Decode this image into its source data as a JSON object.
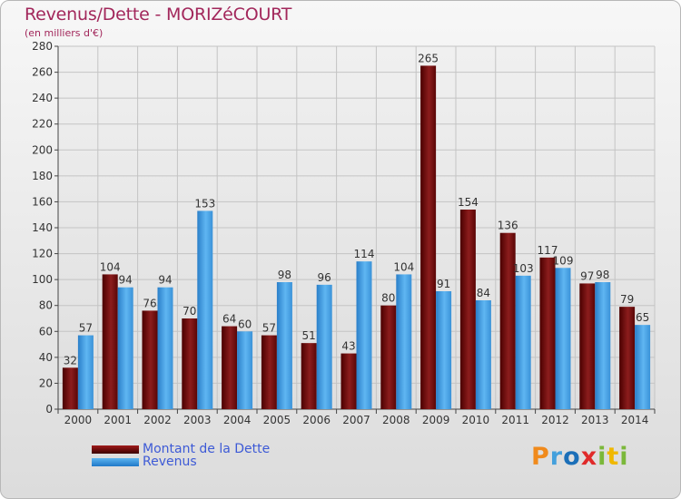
{
  "title": "Revenus/Dette - MORIZéCOURT",
  "subtitle": "(en milliers d'€)",
  "chart_data": {
    "type": "bar",
    "categories": [
      "2000",
      "2001",
      "2002",
      "2003",
      "2004",
      "2005",
      "2006",
      "2007",
      "2008",
      "2009",
      "2010",
      "2011",
      "2012",
      "2013",
      "2014"
    ],
    "series": [
      {
        "name": "Montant de la Dette",
        "color": "#7a1414",
        "values": [
          32,
          104,
          76,
          70,
          64,
          57,
          51,
          43,
          80,
          265,
          154,
          136,
          117,
          97,
          79
        ]
      },
      {
        "name": "Revenus",
        "color": "#3d9ae0",
        "values": [
          57,
          94,
          94,
          153,
          60,
          98,
          96,
          114,
          104,
          91,
          84,
          103,
          109,
          98,
          65
        ]
      }
    ],
    "ylim": [
      0,
      280
    ],
    "yticks": [
      0,
      20,
      40,
      60,
      80,
      100,
      120,
      140,
      160,
      180,
      200,
      220,
      240,
      260,
      280
    ],
    "grid": true,
    "legend": "bottom-left"
  },
  "legend": {
    "debt_label": "Montant de la Dette",
    "revenue_label": "Revenus"
  },
  "logo": {
    "p": "P",
    "r": "r",
    "o": "o",
    "x": "x",
    "i": "i",
    "t": "t",
    "i2": "i"
  }
}
